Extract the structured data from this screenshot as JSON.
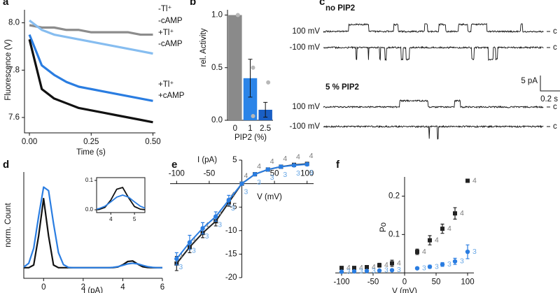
{
  "panel_labels": [
    "a",
    "b",
    "c",
    "d",
    "e",
    "f"
  ],
  "chart_data": [
    {
      "type": "line",
      "ylabel": "Fluorescence (V)",
      "xlabel": "Time (s)",
      "x": [
        0,
        0.05,
        0.1,
        0.15,
        0.2,
        0.25,
        0.3,
        0.35,
        0.4,
        0.45,
        0.5
      ],
      "series": [
        {
          "color": "#8c8c8c",
          "values": [
            7.99,
            7.98,
            7.98,
            7.97,
            7.97,
            7.96,
            7.96,
            7.96,
            7.96,
            7.95,
            7.95
          ]
        },
        {
          "color": "#86bdf0",
          "values": [
            8.01,
            7.97,
            7.95,
            7.94,
            7.93,
            7.92,
            7.91,
            7.9,
            7.89,
            7.88,
            7.87
          ]
        },
        {
          "color": "#2a7de1",
          "values": [
            7.95,
            7.82,
            7.78,
            7.75,
            7.73,
            7.72,
            7.71,
            7.7,
            7.69,
            7.68,
            7.67
          ]
        },
        {
          "color": "#111111",
          "values": [
            7.93,
            7.72,
            7.68,
            7.66,
            7.64,
            7.63,
            7.62,
            7.61,
            7.6,
            7.59,
            7.58
          ]
        }
      ],
      "annotations": [
        "-Tl⁺",
        "-cAMP",
        "+Tl⁺",
        "-cAMP",
        "+Tl⁺",
        "+cAMP"
      ],
      "xlim": [
        -0.02,
        0.51
      ],
      "xticks": [
        {
          "value": 0,
          "label": "0.00"
        },
        0.25,
        {
          "value": 0.5,
          "label": "0.50"
        }
      ],
      "ylim": [
        7.535,
        8.055
      ],
      "yticks": [
        7.6,
        7.8,
        {
          "value": 8,
          "label": "8.0"
        }
      ]
    },
    {
      "type": "bar",
      "ylabel": "rel. Activity",
      "xlabel": "PIP2 (%)",
      "categories": [
        "0",
        "1",
        "2.5"
      ],
      "values": [
        1.0,
        0.4,
        0.1
      ],
      "errors": [
        0,
        0.18,
        0.07
      ],
      "colors": [
        "#8a8a8a",
        "#2b84e8",
        "#1a5fc4"
      ],
      "points": [
        [
          1.0
        ],
        [
          0.5,
          0.04
        ],
        [
          0.36
        ]
      ],
      "ylim": [
        0,
        1.05
      ],
      "yticks": [
        {
          "value": 0,
          "label": "0.0"
        },
        0.5,
        {
          "value": 1,
          "label": "1.0"
        }
      ]
    },
    {
      "type": "line",
      "ylabel": "norm. Count",
      "xlabel": "I (pA)",
      "x": [
        -1,
        -0.75,
        -0.5,
        -0.25,
        0,
        0.25,
        0.5,
        0.75,
        1,
        1.25,
        1.5,
        1.75,
        2,
        2.25,
        2.5,
        2.75,
        3,
        3.25,
        3.5,
        3.75,
        4,
        4.25,
        4.5,
        4.75,
        5,
        5.25,
        5.5,
        5.75,
        6
      ],
      "series": [
        {
          "color": "#111111",
          "values": [
            0,
            0,
            0.03,
            0.36,
            0.78,
            0.36,
            0.03,
            0,
            0,
            0,
            0,
            0,
            0,
            0,
            0,
            0,
            0,
            0,
            0.001,
            0.008,
            0.033,
            0.07,
            0.076,
            0.041,
            0.011,
            0.002,
            0,
            0,
            0
          ]
        },
        {
          "color": "#2a7de1",
          "values": [
            0.007,
            0.05,
            0.22,
            0.58,
            0.91,
            0.87,
            0.5,
            0.17,
            0.035,
            0.004,
            0,
            0,
            0,
            0,
            0,
            0,
            0,
            0,
            0.004,
            0.012,
            0.027,
            0.043,
            0.05,
            0.043,
            0.027,
            0.012,
            0.004,
            0,
            0
          ]
        }
      ],
      "xlim": [
        -1,
        6
      ],
      "xticks": [
        0,
        2,
        4,
        6
      ],
      "ylim": [
        -0.12,
        1.08
      ],
      "inset": {
        "xlim": [
          3.4,
          5.44
        ],
        "xticks": [
          4,
          5
        ],
        "ylim": [
          0,
          0.1
        ],
        "yticks": [
          {
            "value": 0,
            "label": "0.0"
          },
          0.1
        ]
      }
    },
    {
      "type": "scatter",
      "ylabel": "I (pA)",
      "xlabel": "V (mV)",
      "x": [
        -100,
        -80,
        -60,
        -40,
        -20,
        0,
        20,
        40,
        60,
        80,
        100
      ],
      "series": [
        {
          "color": "#222222",
          "marker": "square",
          "n": "4",
          "label_color": "#7a7a7a",
          "values": [
            -17,
            -13.5,
            -10.5,
            -8,
            -4,
            0,
            2,
            3,
            3.6,
            4,
            4.2
          ],
          "errors": [
            1.5,
            1.2,
            1,
            1,
            0.8,
            0,
            0.3,
            0.3,
            0.3,
            0.3,
            0.3
          ]
        },
        {
          "color": "#2a7de1",
          "marker": "circle",
          "n": "3",
          "label_color": "#6aa8e6",
          "values": [
            -16,
            -12.5,
            -9.5,
            -7,
            -3.5,
            0,
            2,
            3,
            3.6,
            3.9,
            4.1
          ],
          "errors": [
            1.3,
            1.5,
            1.2,
            1,
            1,
            0,
            0.3,
            0.3,
            0.3,
            0.3,
            0.3
          ]
        }
      ],
      "connect": true,
      "xlim": [
        -110,
        110
      ],
      "xticks": [
        -100,
        -50,
        50,
        100
      ],
      "ylim": [
        -20,
        5
      ],
      "yticks": [
        5,
        -5,
        -10,
        -15,
        -20
      ]
    },
    {
      "type": "scatter",
      "ylabel": "Po",
      "xlabel": "V (mV)",
      "x": [
        -100,
        -80,
        -60,
        -40,
        -20,
        20,
        40,
        60,
        80,
        100
      ],
      "series": [
        {
          "color": "#222222",
          "marker": "square",
          "n": "4",
          "label_color": "#7a7a7a",
          "values": [
            0.013,
            0.013,
            0.015,
            0.02,
            0.025,
            0.055,
            0.085,
            0.115,
            0.155,
            0.24
          ],
          "errors": [
            0.003,
            0.003,
            0.004,
            0.005,
            0.008,
            0.007,
            0.012,
            0.012,
            0.015,
            0.004
          ]
        },
        {
          "color": "#2a7de1",
          "marker": "circle",
          "n": "3",
          "label_color": "#6aa8e6",
          "values": [
            0.003,
            0.004,
            0.005,
            0.006,
            0.007,
            0.012,
            0.016,
            0.022,
            0.03,
            0.055
          ],
          "errors": [
            0.002,
            0.002,
            0.002,
            0.002,
            0.002,
            0.003,
            0.004,
            0.005,
            0.008,
            0.018
          ]
        }
      ],
      "connect": false,
      "xlim": [
        -110,
        110
      ],
      "xticks": [
        -100,
        -50,
        0,
        50,
        100
      ],
      "ylim": [
        -0.005,
        0.25
      ],
      "yticks": [
        0.1,
        0.2
      ]
    }
  ],
  "traces_panel": {
    "conditions": [
      {
        "title": "no PIP2",
        "voltages": [
          "100 mV",
          "-100 mV"
        ]
      },
      {
        "title": "5 % PIP2",
        "voltages": [
          "100 mV",
          "-100 mV"
        ]
      }
    ],
    "closed_label": "c",
    "scale_current": "5 pA",
    "scale_time": "0.2 s"
  }
}
